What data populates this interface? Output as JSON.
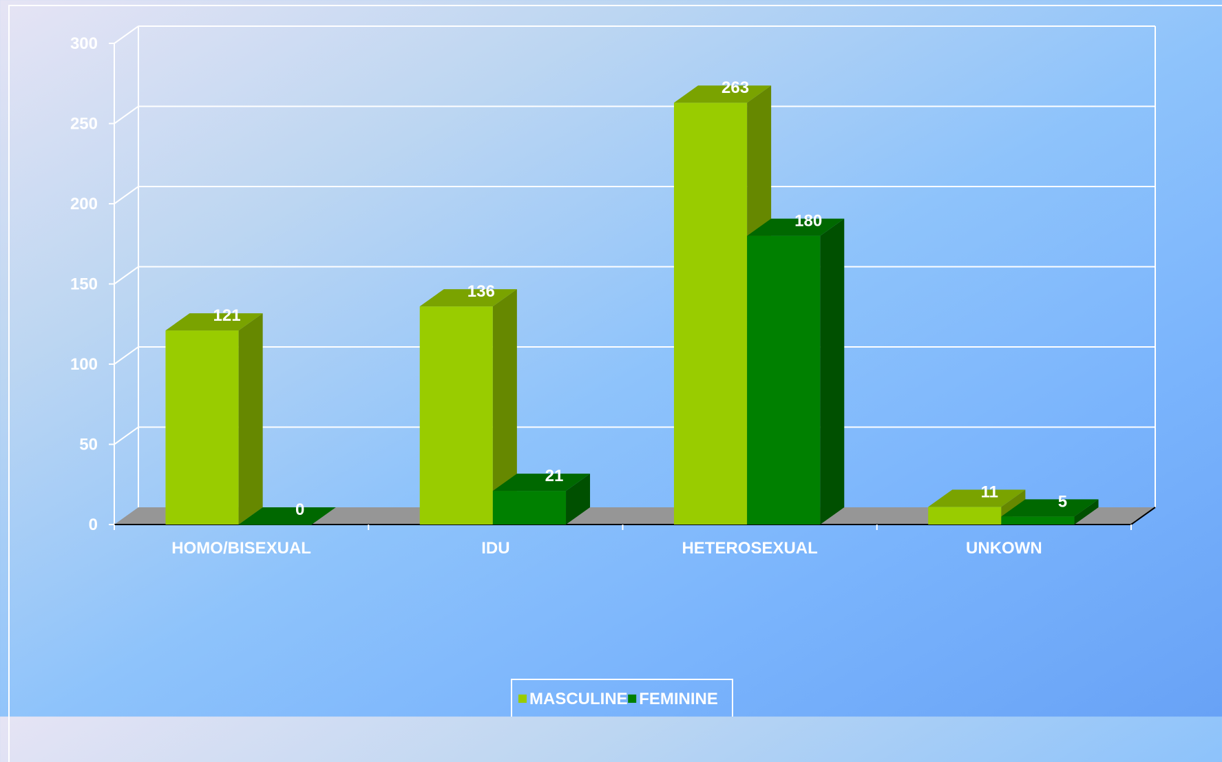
{
  "chart_data": {
    "type": "bar",
    "variant": "3d-clustered",
    "title": "",
    "xlabel": "",
    "ylabel": "",
    "ylim": [
      0,
      300
    ],
    "y_ticks": [
      "0",
      "50",
      "100",
      "150",
      "200",
      "250",
      "300"
    ],
    "grid": true,
    "legend_position": "bottom",
    "categories": [
      "HOMO/BISEXUAL",
      "IDU",
      "HETEROSEXUAL",
      "UNKOWN"
    ],
    "series": [
      {
        "name": "MASCULINE",
        "values": [
          121,
          136,
          263,
          11
        ],
        "labels": [
          "121",
          "136",
          "263",
          "11"
        ],
        "color": "#99cc00",
        "side_color": "#668800",
        "top_color": "#7aa300"
      },
      {
        "name": "FEMININE",
        "values": [
          0,
          21,
          180,
          5
        ],
        "labels": [
          "0",
          "21",
          "180",
          "5"
        ],
        "color": "#008000",
        "side_color": "#005000",
        "top_color": "#006800"
      }
    ],
    "floor_color": "#969696",
    "grid_color": "#ffffff"
  }
}
